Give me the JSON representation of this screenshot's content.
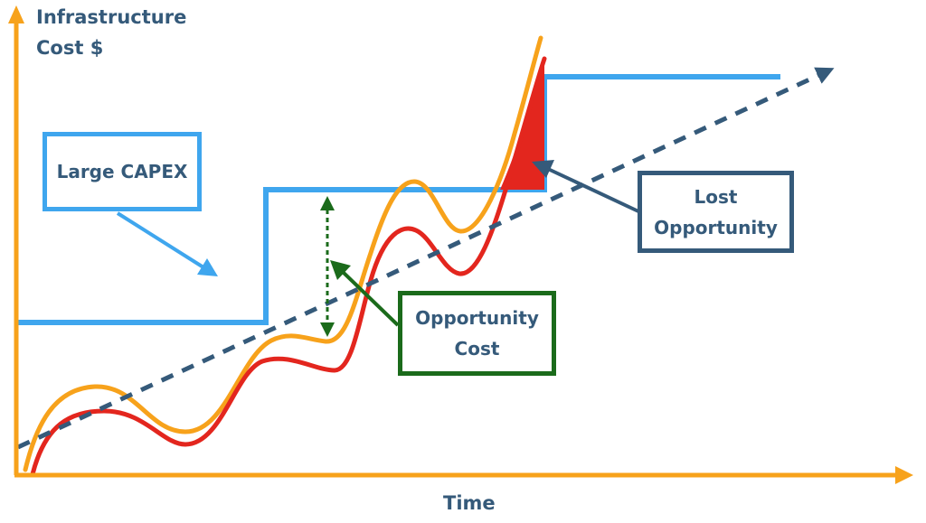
{
  "axes": {
    "y_title": [
      "Infrastructure",
      "Cost $"
    ],
    "x_title": "Time"
  },
  "callouts": {
    "capex": [
      "Large CAPEX"
    ],
    "opportunity_cost": [
      "Opportunity",
      "Cost"
    ],
    "lost_opportunity": [
      "Lost",
      "Opportunity"
    ]
  },
  "colors": {
    "axis": "#f7a21b",
    "capacity_step": "#3fa6ee",
    "trend": "#355a7a",
    "demand_orange": "#f7a21b",
    "demand_red": "#e3261e",
    "lost_fill": "#e3261e",
    "opportunity": "#1b6b1b"
  }
}
